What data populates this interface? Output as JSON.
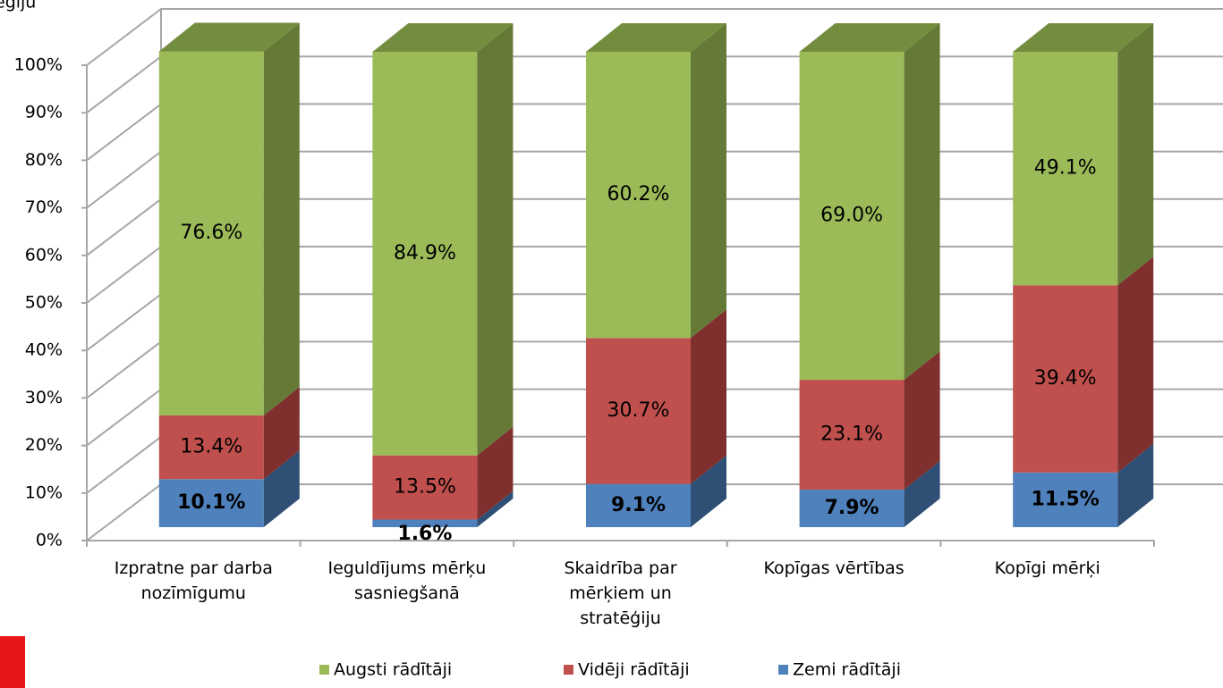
{
  "chart_data": {
    "type": "bar3d_stacked",
    "annotation": "egiju",
    "categories": [
      "Izpratne par darba nozīmīgumu",
      "Ieguldījums mērķu sasniegšanā",
      "Skaidrība par mērķiem un stratēģiju",
      "Kopīgas vērtības",
      "Kopīgi mērķi"
    ],
    "series": [
      {
        "name": "Zemi rādītāji",
        "color": "#4f81bd",
        "side": "#2f4f75",
        "values": [
          10.1,
          1.6,
          9.1,
          7.9,
          11.5
        ],
        "value_labels": [
          "10.1%",
          "1.6%",
          "9.1%",
          "7.9%",
          "11.5%"
        ]
      },
      {
        "name": "Vidēji rādītāji",
        "color": "#c0504d",
        "side": "#7f302e",
        "values": [
          13.4,
          13.5,
          30.7,
          23.1,
          39.4
        ],
        "value_labels": [
          "13.4%",
          "13.5%",
          "30.7%",
          "23.1%",
          "39.4%"
        ]
      },
      {
        "name": "Augsti rādītāji",
        "color": "#9bbb59",
        "side": "#657a37",
        "top": "#738d3f",
        "values": [
          76.6,
          84.9,
          60.2,
          69.0,
          49.1
        ],
        "value_labels": [
          "76.6%",
          "84.9%",
          "60.2%",
          "69.0%",
          "49.1%"
        ]
      }
    ],
    "ylim": [
      0,
      100
    ],
    "yticks": [
      {
        "value": 0,
        "label": "0%"
      },
      {
        "value": 10,
        "label": "10%"
      },
      {
        "value": 20,
        "label": "20%"
      },
      {
        "value": 30,
        "label": "30%"
      },
      {
        "value": 40,
        "label": "40%"
      },
      {
        "value": 50,
        "label": "50%"
      },
      {
        "value": 60,
        "label": "60%"
      },
      {
        "value": 70,
        "label": "70%"
      },
      {
        "value": 80,
        "label": "80%"
      },
      {
        "value": 90,
        "label": "90%"
      },
      {
        "value": 100,
        "label": "100%"
      }
    ],
    "grid": true,
    "legend": "bottom"
  }
}
